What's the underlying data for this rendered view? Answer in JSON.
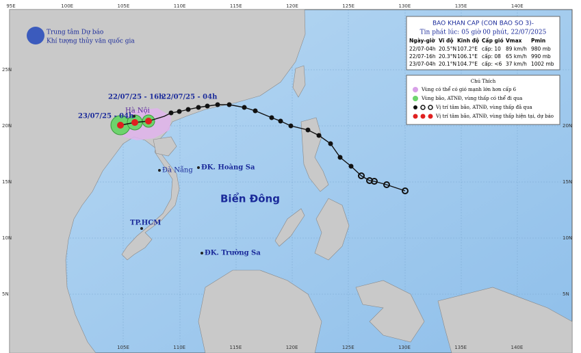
{
  "header": {
    "agency_line1": "Trung tâm Dự báo",
    "agency_line2": "Khí tượng thủy văn quốc gia"
  },
  "bulletin": {
    "title": "BAO KHAN CAP (CON BAO SO 3)-",
    "issued": "Tin phát lúc: 05 giờ 00 phút, 22/07/2025",
    "table": {
      "columns": [
        "Ngày-giờ",
        "Vĩ độ",
        "Kinh độ",
        "Cấp gió",
        "Vmax",
        "Pmin"
      ],
      "rows": [
        [
          "22/07-04h",
          "20.5°N",
          "107.2°E",
          "cấp: 10",
          "89 km/h",
          "980 mb"
        ],
        [
          "22/07-16h",
          "20.3°N",
          "106.1°E",
          "cấp: 08",
          "65 km/h",
          "990 mb"
        ],
        [
          "23/07-04h",
          "20.1°N",
          "104.7°E",
          "cấp: <6",
          "37 km/h",
          "1002 mb"
        ]
      ]
    }
  },
  "legend": {
    "title": "Chú Thích",
    "items": [
      "Vùng có thể có gió mạnh lớn hơn cấp 6",
      "Vùng bão, ATNĐ, vùng thấp có thể đi qua",
      "Vị trí tâm bão, ATNĐ, vùng thấp đã qua",
      "Vị trí tâm bão, ATNĐ, vùng thấp hiện tại, dự báo"
    ]
  },
  "map_labels": {
    "forecast_16h": "22/07/25 - 16h",
    "current_04h": "22/07/25 - 04h",
    "forecast_next_04h": "23/07/25 - 04h",
    "ha_noi": "Hà Nội",
    "da_nang": "Đà Nẵng",
    "hoang_sa": "ĐK. Hoàng Sa",
    "hcm": "TP.HCM",
    "truong_sa": "ĐK. Trường Sa",
    "sea": "Biển Đông"
  },
  "longitude_labels_top": [
    "95E",
    "100E",
    "105E",
    "110E",
    "115E",
    "120E",
    "125E",
    "130E",
    "135E",
    "140E"
  ],
  "longitude_labels_bottom": [
    "105E",
    "110E",
    "115E",
    "120E",
    "125E",
    "130E",
    "135E",
    "140E"
  ],
  "latitude_labels_left": [
    "25N",
    "20N",
    "15N",
    "10N",
    "5N"
  ],
  "latitude_labels_right": [
    "20N",
    "15N",
    "10N",
    "5N"
  ]
}
